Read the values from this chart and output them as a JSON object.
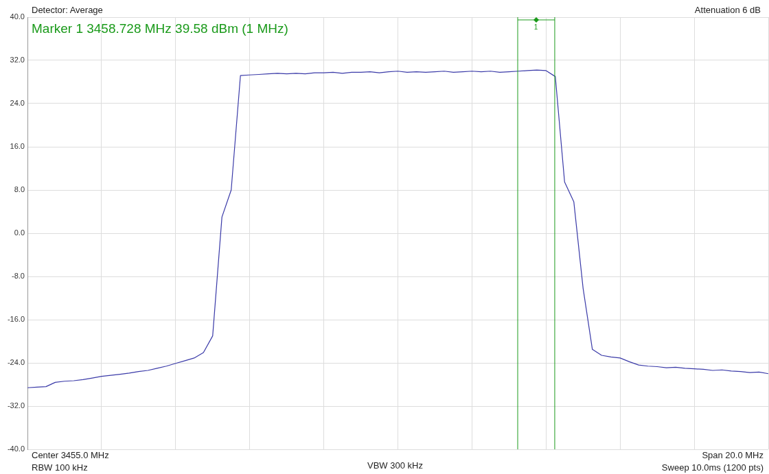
{
  "chart_data": {
    "type": "line",
    "annotations": [
      "Detector: Average",
      "Attenuation 6 dB",
      "Marker 1 3458.728 MHz 39.58 dBm (1 MHz)",
      "Center 3455.0 MHz",
      "RBW 100 kHz",
      "VBW 300 kHz",
      "Span 20.0 MHz",
      "Sweep 10.0ms (1200 pts)",
      "1"
    ],
    "categories": [
      null,
      null,
      null,
      null,
      null,
      null,
      null,
      null,
      null,
      null,
      null,
      null,
      null,
      null,
      null,
      null,
      null,
      null,
      null,
      null,
      null,
      null,
      null,
      null,
      null,
      null,
      null,
      null,
      null,
      null,
      null,
      null,
      null,
      null,
      null,
      null,
      null,
      null,
      null,
      null,
      null,
      null,
      null,
      null,
      null,
      null,
      null,
      null,
      null,
      null,
      null,
      null,
      null,
      null,
      null,
      null,
      null,
      null,
      null,
      null,
      null,
      null,
      null,
      null,
      null,
      null,
      null,
      null,
      null,
      null,
      null,
      null,
      null,
      null,
      null,
      null,
      null,
      null,
      null,
      null,
      null
    ],
    "ylim": [
      -40,
      40
    ],
    "yticks": [
      {
        "value": 40,
        "label": "40.0"
      },
      {
        "value": 32,
        "label": "32.0"
      },
      {
        "value": 24,
        "label": "24.0"
      },
      {
        "value": 16,
        "label": "16.0"
      },
      {
        "value": 8,
        "label": "8.0"
      },
      {
        "value": 0,
        "label": "0.0"
      },
      {
        "value": -8,
        "label": "-8.0"
      },
      {
        "value": -16,
        "label": "-16.0"
      },
      {
        "value": -24,
        "label": "-24.0"
      },
      {
        "value": -32,
        "label": "-32.0"
      },
      {
        "value": -40,
        "label": "-40.0"
      }
    ],
    "tick_labels": "y",
    "grid": true,
    "legend": false,
    "line_style": "solid",
    "series": [
      {
        "color": "#3a3aa8",
        "values": [
          -28.6,
          -28.5,
          -28.4,
          -27.6,
          -27.4,
          -27.3,
          -27.1,
          -26.8,
          -26.5,
          -26.3,
          -26.1,
          -25.9,
          -25.6,
          -25.4,
          -25.0,
          -24.6,
          -24.1,
          -23.6,
          -23.1,
          -22.1,
          -19.0,
          3.0,
          8.0,
          29.2,
          29.3,
          29.4,
          29.5,
          29.6,
          29.5,
          29.6,
          29.5,
          29.7,
          29.7,
          29.8,
          29.6,
          29.8,
          29.8,
          29.9,
          29.7,
          29.9,
          30.0,
          29.8,
          29.9,
          29.8,
          29.9,
          30.0,
          29.8,
          29.9,
          30.0,
          29.9,
          30.0,
          29.8,
          29.9,
          30.0,
          30.1,
          30.2,
          30.1,
          29.0,
          9.5,
          5.8,
          -10.2,
          -21.5,
          -22.6,
          -22.9,
          -23.1,
          -23.8,
          -24.4,
          -24.6,
          -24.7,
          -24.9,
          -24.8,
          -25.0,
          -25.1,
          -25.2,
          -25.4,
          -25.3,
          -25.5,
          -25.6,
          -25.8,
          -25.7,
          -26.0
        ]
      }
    ]
  }
}
